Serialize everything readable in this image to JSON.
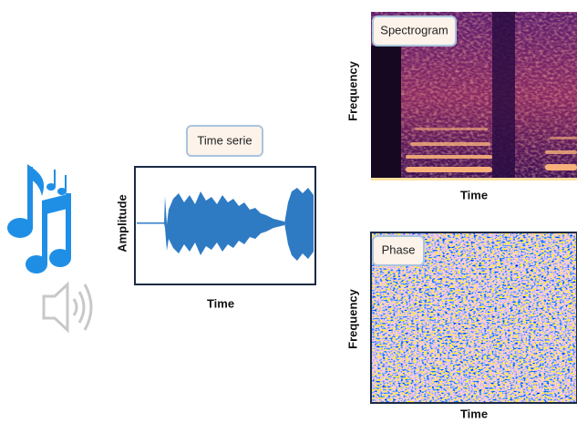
{
  "time_series": {
    "title": "Time serie",
    "y_label": "Amplitude",
    "x_label": "Time"
  },
  "spectrogram": {
    "title": "Spectrogram",
    "y_label": "Frequency",
    "x_label": "Time"
  },
  "phase": {
    "title": "Phase",
    "y_label": "Frequency",
    "x_label": "Time"
  }
}
